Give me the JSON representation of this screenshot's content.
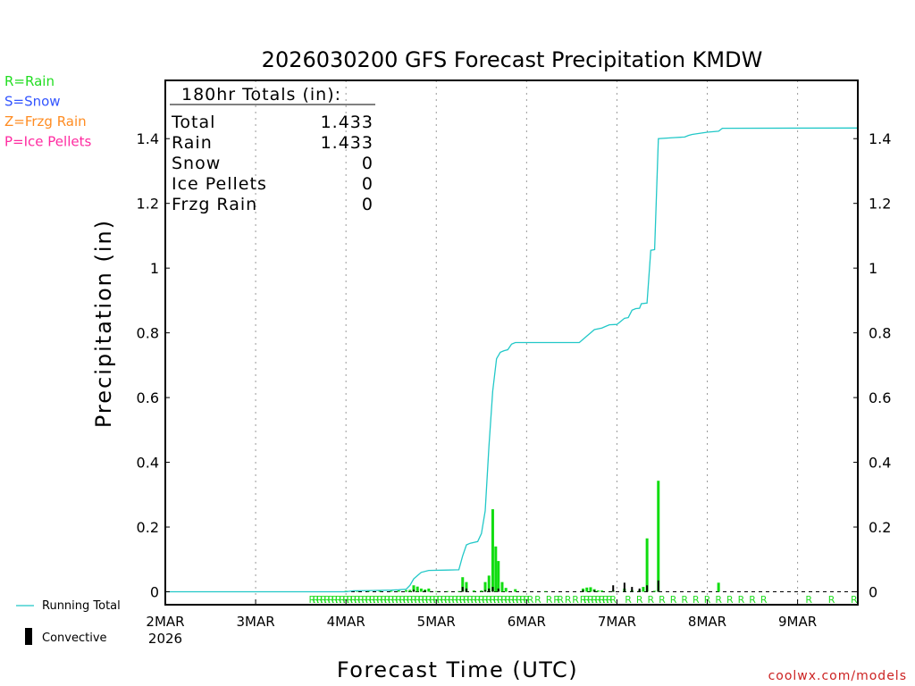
{
  "chart_data": {
    "type": "bar",
    "title": "2026030200 GFS Forecast Precipitation KMDW",
    "xlabel": "Forecast Time (UTC)",
    "ylabel": "Precipitation (in)",
    "ylim": [
      -0.04,
      1.58
    ],
    "xlim_hours": [
      0,
      184
    ],
    "yticks": [
      0,
      0.2,
      0.4,
      0.6,
      0.8,
      1,
      1.2,
      1.4
    ],
    "ytick_labels": [
      "0",
      "0.2",
      "0.4",
      "0.6",
      "0.8",
      "1",
      "1.2",
      "1.4"
    ],
    "xticks": [
      {
        "hour": 0,
        "label": "2MAR"
      },
      {
        "hour": 24,
        "label": "3MAR"
      },
      {
        "hour": 48,
        "label": "4MAR"
      },
      {
        "hour": 72,
        "label": "5MAR"
      },
      {
        "hour": 96,
        "label": "6MAR"
      },
      {
        "hour": 120,
        "label": "7MAR"
      },
      {
        "hour": 144,
        "label": "8MAR"
      },
      {
        "hour": 168,
        "label": "9MAR"
      }
    ],
    "year_label": "2026",
    "grid": true,
    "legend_types": [
      {
        "code": "R",
        "text": "R=Rain",
        "color": "#22dd22"
      },
      {
        "code": "S",
        "text": "S=Snow",
        "color": "#3355ff"
      },
      {
        "code": "Z",
        "text": "Z=Frzg Rain",
        "color": "#ff8c22"
      },
      {
        "code": "P",
        "text": "P=Ice Pellets",
        "color": "#ff2aa0"
      }
    ],
    "line_legend": "Running Total",
    "conv_legend": "Convective",
    "totals": {
      "header": "180hr Totals (in):",
      "rows": [
        {
          "label": "Total",
          "value": "1.433"
        },
        {
          "label": "Rain",
          "value": "1.433"
        },
        {
          "label": "Snow",
          "value": "0"
        },
        {
          "label": "Ice Pellets",
          "value": "0"
        },
        {
          "label": "Frzg Rain",
          "value": "0"
        }
      ]
    },
    "series": [
      {
        "name": "Running Total",
        "color": "#22c8c8",
        "points": [
          [
            0,
            0
          ],
          [
            48,
            0
          ],
          [
            50,
            0.003
          ],
          [
            55,
            0.004
          ],
          [
            60,
            0.005
          ],
          [
            62,
            0.006
          ],
          [
            64,
            0.008
          ],
          [
            65,
            0.02
          ],
          [
            66,
            0.04
          ],
          [
            67,
            0.05
          ],
          [
            68,
            0.06
          ],
          [
            70,
            0.066
          ],
          [
            75,
            0.067
          ],
          [
            78,
            0.068
          ],
          [
            79,
            0.11
          ],
          [
            80,
            0.145
          ],
          [
            81,
            0.15
          ],
          [
            83,
            0.155
          ],
          [
            84,
            0.18
          ],
          [
            85,
            0.25
          ],
          [
            86,
            0.45
          ],
          [
            87,
            0.62
          ],
          [
            88,
            0.72
          ],
          [
            89,
            0.74
          ],
          [
            90,
            0.745
          ],
          [
            91,
            0.748
          ],
          [
            92,
            0.765
          ],
          [
            93,
            0.77
          ],
          [
            96,
            0.77
          ],
          [
            110,
            0.77
          ],
          [
            112,
            0.79
          ],
          [
            113,
            0.8
          ],
          [
            114,
            0.81
          ],
          [
            116,
            0.815
          ],
          [
            117,
            0.82
          ],
          [
            118,
            0.825
          ],
          [
            120,
            0.826
          ],
          [
            121,
            0.835
          ],
          [
            122,
            0.845
          ],
          [
            123,
            0.847
          ],
          [
            124,
            0.87
          ],
          [
            125,
            0.875
          ],
          [
            126,
            0.876
          ],
          [
            126.5,
            0.89
          ],
          [
            128,
            0.892
          ],
          [
            129,
            1.055
          ],
          [
            130,
            1.057
          ],
          [
            131,
            1.4
          ],
          [
            135,
            1.403
          ],
          [
            138,
            1.405
          ],
          [
            139,
            1.41
          ],
          [
            140,
            1.413
          ],
          [
            144,
            1.42
          ],
          [
            147,
            1.423
          ],
          [
            148,
            1.432
          ],
          [
            184,
            1.433
          ]
        ]
      }
    ],
    "bars": {
      "name": "Precipitation",
      "color": "#11dd11",
      "hours": [
        48,
        51,
        54,
        57,
        60,
        62,
        64,
        65,
        66,
        67,
        68,
        69,
        70,
        72,
        75,
        78,
        79,
        80,
        82,
        84,
        85,
        86,
        87,
        87.8,
        88.5,
        89.5,
        90.5,
        93,
        101,
        111,
        112,
        113,
        114,
        115,
        116,
        119,
        122,
        124,
        126,
        127,
        128,
        130,
        131,
        147
      ],
      "values": [
        0.003,
        0.003,
        0.003,
        0.003,
        0.003,
        0.004,
        0.005,
        0.006,
        0.02,
        0.016,
        0.01,
        0.007,
        0.01,
        0.002,
        0.002,
        0.002,
        0.045,
        0.03,
        0.004,
        0.004,
        0.03,
        0.05,
        0.255,
        0.14,
        0.095,
        0.03,
        0.012,
        0.008,
        0.002,
        0.01,
        0.013,
        0.014,
        0.008,
        0.004,
        0.004,
        0.004,
        0.01,
        0.005,
        0.005,
        0.015,
        0.165,
        0.003,
        0.343,
        0.028
      ]
    },
    "convective": {
      "name": "Convective",
      "color": "#000000",
      "hours": [
        66,
        69,
        79,
        80,
        85,
        86,
        87,
        88.5,
        111,
        114,
        119,
        122,
        124,
        126,
        128,
        131
      ],
      "values": [
        0.006,
        0.004,
        0.015,
        0.01,
        0.005,
        0.01,
        0.015,
        0.01,
        0.005,
        0.005,
        0.02,
        0.028,
        0.015,
        0.01,
        0.02,
        0.035
      ]
    },
    "precip_type_hours": [
      39,
      40,
      41,
      42,
      43,
      44,
      45,
      46,
      47,
      48,
      49,
      50,
      51,
      52,
      53,
      54,
      55,
      56,
      57,
      58,
      59,
      60,
      61,
      62,
      63,
      64,
      65,
      66,
      67,
      68,
      69,
      70,
      71,
      72,
      73,
      74,
      75,
      76,
      77,
      78,
      79,
      80,
      81,
      82,
      83,
      84,
      85,
      86,
      87,
      88,
      89,
      90,
      91,
      92,
      93,
      94,
      95,
      96,
      97,
      99,
      102,
      104,
      105,
      107,
      109,
      111,
      112,
      113,
      114,
      115,
      116,
      117,
      118,
      119,
      123,
      126,
      129,
      132,
      135,
      138,
      141,
      144,
      147,
      150,
      153,
      156,
      159,
      171,
      177,
      183
    ]
  },
  "watermark": "coolwx.com/models"
}
